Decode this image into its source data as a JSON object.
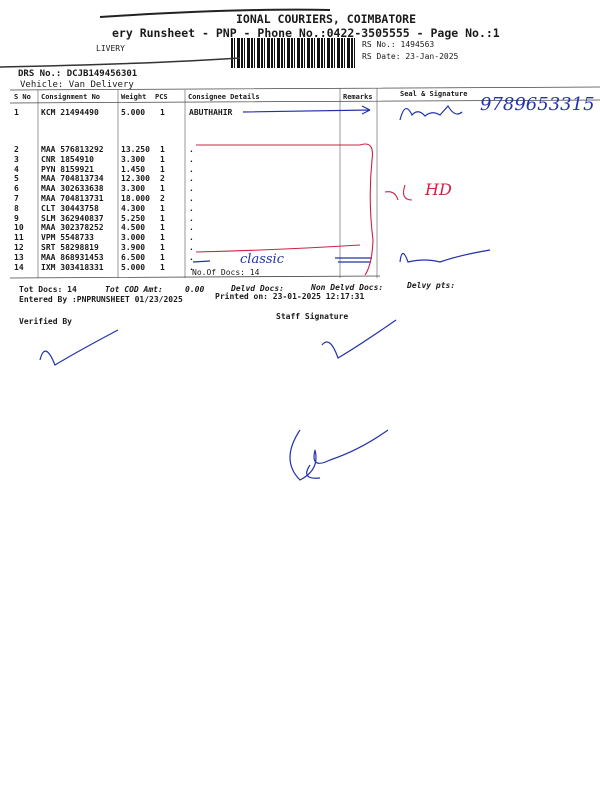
{
  "header": {
    "company": "IONAL COURIERS, COIMBATORE",
    "title": "ery Runsheet - PNP - Phone No.:0422-3505555 - Page No.:1",
    "type": "LIVERY",
    "rs_no": "RS No.: 1494563",
    "rs_date": "RS Date: 23-Jan-2025",
    "drs_no": "DRS No.: DCJB149456301",
    "vehicle": "Vehicle: Van Delivery"
  },
  "table": {
    "headers": [
      "S No",
      "Consignment No",
      "Weight",
      "PCS",
      "Consignee Details",
      "Remarks",
      "Seal & Signature"
    ],
    "rows": [
      {
        "sno": "1",
        "cn": "KCM 21494490",
        "wt": "5.000",
        "pcs": "1",
        "consignee": "ABUTHAHIR"
      },
      {
        "sno": "2",
        "cn": "MAA 576813292",
        "wt": "13.250",
        "pcs": "1",
        "consignee": "."
      },
      {
        "sno": "3",
        "cn": "CNR 1854910",
        "wt": "3.300",
        "pcs": "1",
        "consignee": "."
      },
      {
        "sno": "4",
        "cn": "PYN 8159921",
        "wt": "1.450",
        "pcs": "1",
        "consignee": "."
      },
      {
        "sno": "5",
        "cn": "MAA 704813734",
        "wt": "12.300",
        "pcs": "2",
        "consignee": "."
      },
      {
        "sno": "6",
        "cn": "MAA 302633638",
        "wt": "3.300",
        "pcs": "1",
        "consignee": "."
      },
      {
        "sno": "7",
        "cn": "MAA 704813731",
        "wt": "18.000",
        "pcs": "2",
        "consignee": "."
      },
      {
        "sno": "8",
        "cn": "CLT 30443758",
        "wt": "4.300",
        "pcs": "1",
        "consignee": "."
      },
      {
        "sno": "9",
        "cn": "SLM 362940837",
        "wt": "5.250",
        "pcs": "1",
        "consignee": "."
      },
      {
        "sno": "10",
        "cn": "MAA 302378252",
        "wt": "4.500",
        "pcs": "1",
        "consignee": "."
      },
      {
        "sno": "11",
        "cn": "VPM 5548733",
        "wt": "3.000",
        "pcs": "1",
        "consignee": "."
      },
      {
        "sno": "12",
        "cn": "SRT 58298819",
        "wt": "3.900",
        "pcs": "1",
        "consignee": "."
      },
      {
        "sno": "13",
        "cn": "MAA 868931453",
        "wt": "6.500",
        "pcs": "1",
        "consignee": "."
      },
      {
        "sno": "14",
        "cn": "IXM 303418331",
        "wt": "5.000",
        "pcs": "1",
        "consignee": "."
      }
    ],
    "no_of_docs": "No.Of Docs: 14"
  },
  "footer": {
    "tot_docs": "Tot Docs:  14",
    "tot_cod": "Tot COD Amt:",
    "cod_value": "0.00",
    "delvd": "Delvd Docs:",
    "non_delvd": "Non Delvd Docs:",
    "delvy_pts": "Delvy pts:",
    "entered_by": "Entered By :PNPRUNSHEET 01/23/2025",
    "printed_on": "Printed on: 23-01-2025 12:17:31",
    "verified_by": "Verified By",
    "staff_signature": "Staff Signature"
  },
  "handwriting": {
    "phone": "9789653315",
    "remark": "HD",
    "classic": "classic"
  },
  "colors": {
    "ink_blue": "#2233aa",
    "ink_red": "#cc2244"
  }
}
